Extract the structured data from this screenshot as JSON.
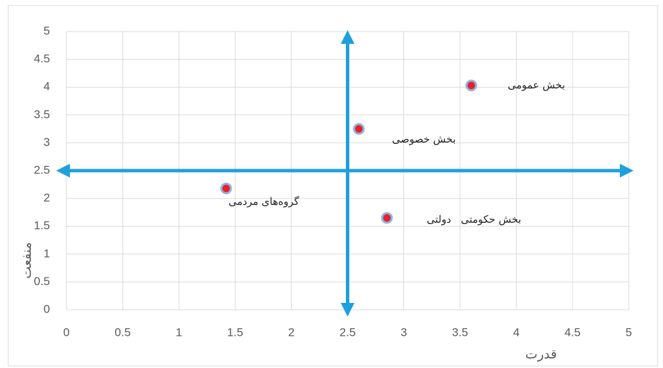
{
  "chart_data": {
    "type": "scatter",
    "x_label": "قدرت",
    "y_label": "منفعت",
    "xlim": [
      0,
      5
    ],
    "ylim": [
      0,
      5
    ],
    "xticks": [
      0,
      0.5,
      1,
      1.5,
      2,
      2.5,
      3,
      3.5,
      4,
      4.5,
      5
    ],
    "yticks": [
      0,
      0.5,
      1,
      1.5,
      2,
      2.5,
      3,
      3.5,
      4,
      4.5,
      5
    ],
    "grid": true,
    "crosshair": {
      "x": 2.5,
      "y": 2.5,
      "color": "#1ea0dc"
    },
    "color": "#e8202a",
    "x": [
      1.42,
      2.6,
      2.85,
      3.6
    ],
    "values": [
      2.18,
      3.25,
      1.65,
      4.03
    ],
    "point_labels": [
      "گروه‌های مردمی",
      "بخش خصوصی",
      "بخش حکومتی   دولتی",
      "بخش عمومی"
    ]
  }
}
